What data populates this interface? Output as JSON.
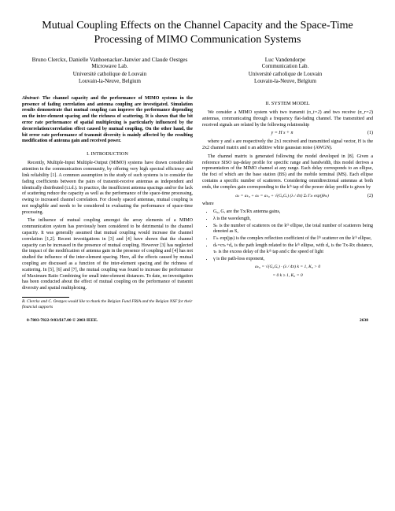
{
  "title": "Mutual Coupling Effects on the Channel Capacity and the Space-Time Processing of MIMO Communication Systems",
  "authorsLeft": {
    "names": "Bruno Clerckx, Danielle Vanhoenacker-Janvier and Claude Oestges",
    "lab": "Microwave Lab.",
    "univ": "Université catholique de Louvain",
    "city": "Louvain-la-Neuve, Belgium"
  },
  "authorsRight": {
    "names": "Luc Vandendorpe",
    "lab": "Communication Lab.",
    "univ": "Université catholique de Louvain",
    "city": "Louvain-la-Neuve, Belgium"
  },
  "abstract": "The channel capacity and the performance of MIMO systems in the presence of fading correlation and antenna coupling are investigated. Simulation results demonstrate that mutual coupling can improve the performance depending on the inter-element spacing and the richness of scattering. It is shown that the bit error rate performance of spatial multiplexing is particularly influenced by the decorrelation/correlation effect caused by mutual coupling. On the other hand, the bit error rate performance of transmit diversity is mainly affected by the resulting modification of antenna gain and received power.",
  "abstractLead": "Abstract-",
  "sec1": {
    "num": "I.",
    "title": "INTRODUCTION"
  },
  "intro1": "Recently, Multiple-Input Multiple-Output (MIMO) systems have drawn considerable attention in the communication community, by offering very high spectral efficiency and link reliability [1]. A common assumption in the study of such systems is to consider the fading coefficients between the pairs of transmit-receive antennas as independent and identically distributed (i.i.d.). In practice, the insufficient antenna spacings and/or the lack of scattering reduce the capacity as well as the performance of the space-time processing, owing to increased channel correlation. For closely spaced antennas, mutual coupling is not negligible and needs to be considered in evaluating the performance of space-time processing.",
  "intro2": "The influence of mutual coupling amongst the array elements of a MIMO communication system has previously been considered to be detrimental to the channel capacity. It was generally assumed that mutual coupling would increase the channel correlation [1,2]. Recent investigations in [3] and [4] have shown that the channel capacity can be increased in the presence of mutual coupling. However [3] has neglected the impact of the modification of antenna gain in the presence of coupling and [4] has not studied the influence of the inter-element spacing. Here, all the effects caused by mutual coupling are discussed as a function of the inter-element spacing and the richness of scattering. In [5], [6] and [7], the mutual coupling was found to increase the performance of Maximum Ratio Combining for small inter-element distances. To date, no investigation has been conducted about the effect of mutual coupling on the performance of transmit diversity and spatial multiplexing.",
  "sec2": {
    "num": "II.",
    "title": "SYSTEM MODEL"
  },
  "model1pre": "We consider a MIMO system with two transmit (",
  "model1nt": "n_t=2",
  "model1mid": ") and two receive (",
  "model1nr": "n_r=2",
  "model1post": ") antennas, communicating through a frequency flat-fading channel. The transmitted and received signals are related by the following relationship",
  "eq1": "y = H s + n",
  "eq1num": "(1)",
  "model2": "where y and s are respectively the 2x1 received and transmitted signal vector, H is the 2x2 channel matrix and n an additive white gaussian noise (AWGN).",
  "model3": "The channel matrix is generated following the model developed in [8]. Given a reference SISO tap-delay profile for specific range and bandwidth, this model derives a representation of the MIMO channel at any range. Each delay corresponds to an ellipse, the foci of which are the base station (BS) and the mobile terminal (MS). Each ellipse contains a specific number of scatterers. Considering omnidirectional antennas at both ends, the complex gain corresponding to the kᵗʰ tap of the power delay profile is given by",
  "eq2": "aₖ = aₖ₀ + aₖ = aₖ₀ + √(G₀Gᵣ) (λ / 4π) Σₗ Γₗₖ exp(jθₗₖ)",
  "eq2num": "(2)",
  "where": "where",
  "b1": "G₀, Gᵣ are the Tx/Rx antenna gains,",
  "b2": "λ is the wavelength,",
  "b3": "Sₖ is the number of scatterers on the kᵗʰ ellipse, the total number of scatterers being denoted as S,",
  "b4": "Γₗₖ exp(jφₗ) is the complex reflection coefficient of the lᵗʰ scatterer on the kᵗʰ ellipse,",
  "b5": "dₖ=cτₖ+d₀ is the path length related to the kᵗʰ ellipse, with d₀ is the Tx-Rx distance, τₖ is the excess delay of the kᵗʰ tap and c the speed of light",
  "b6": "γ is the path-loss exponent,",
  "rel1": "aₖ₀ = √(G₀Gᵣ) · (λ / 4π)    k = 1, K₀ > 0",
  "rel2": "= 0           k ≥ 1, K₀ = 0",
  "footnote": "B. Clerckx and C. Oestges would like to thank the Belgian Fund FRIA and the Belgian NSF for their financial supports",
  "footerLeft": "0-7803-7822-9/03/$17.00 © 2003 IEEE.",
  "footerRight": "2638"
}
